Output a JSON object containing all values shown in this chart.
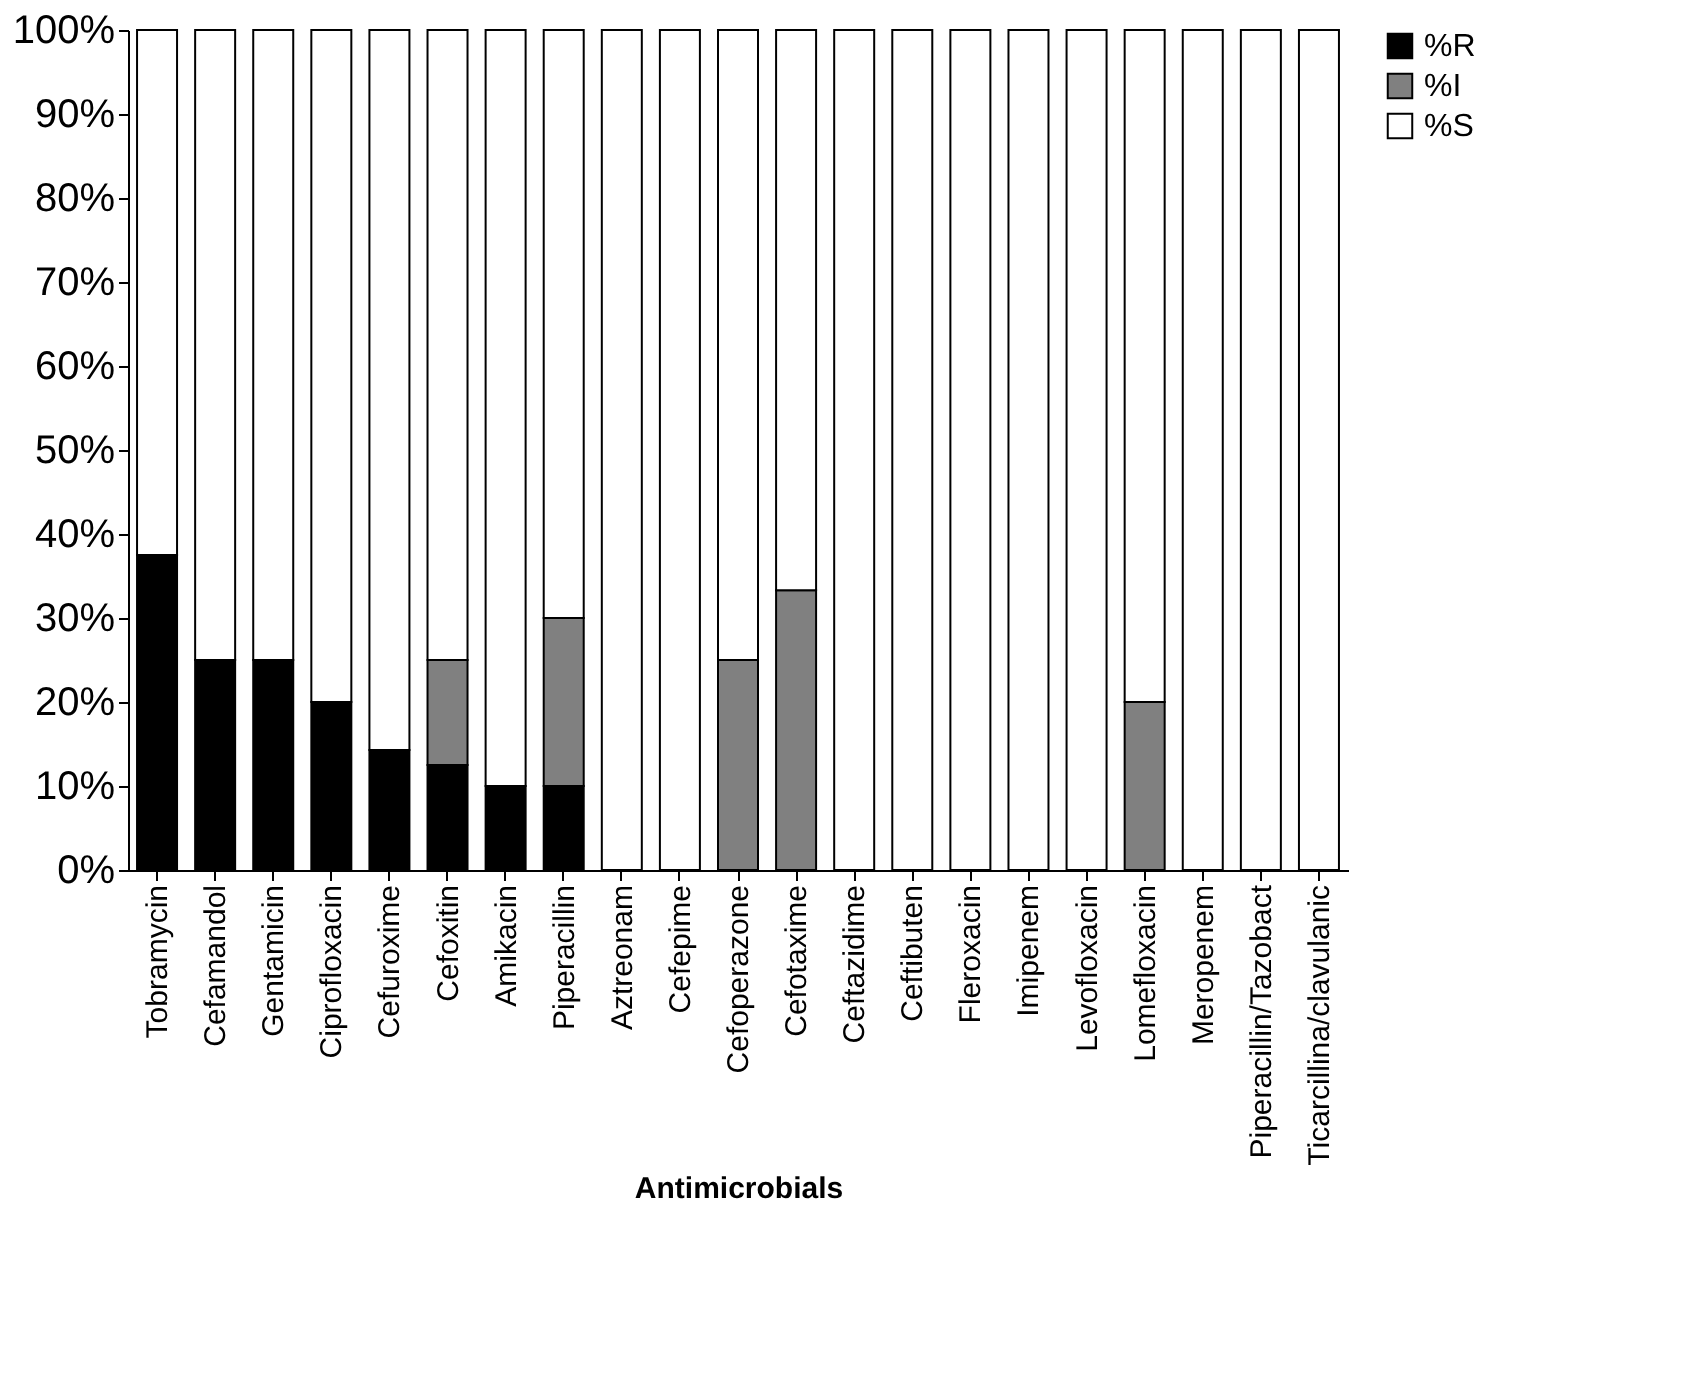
{
  "chart_data": {
    "type": "bar",
    "stacked": true,
    "xlabel": "Antimicrobials",
    "categories": [
      "Tobramycin",
      "Cefamandol",
      "Gentamicin",
      "Ciprofloxacin",
      "Cefuroxime",
      "Cefoxitin",
      "Amikacin",
      "Piperacillin",
      "Aztreonam",
      "Cefepime",
      "Cefoperazone",
      "Cefotaxime",
      "Ceftazidime",
      "Ceftibuten",
      "Fleroxacin",
      "Imipenem",
      "Levofloxacin",
      "Lomefloxacin",
      "Meropenem",
      "Piperacillin/Tazobact",
      "Ticarcillina/clavulanic"
    ],
    "series": [
      {
        "name": "%R",
        "color": "#000000",
        "values": [
          37.5,
          25,
          25,
          20,
          14.3,
          12.5,
          10,
          10,
          0,
          0,
          0,
          0,
          0,
          0,
          0,
          0,
          0,
          0,
          0,
          0,
          0
        ]
      },
      {
        "name": "%I",
        "color": "#808080",
        "values": [
          0,
          0,
          0,
          0,
          0,
          12.5,
          0,
          20,
          0,
          0,
          25,
          33.3,
          0,
          0,
          0,
          0,
          0,
          20,
          0,
          0,
          0
        ]
      },
      {
        "name": "%S",
        "color": "#ffffff",
        "values": [
          62.5,
          75,
          75,
          80,
          85.7,
          75,
          90,
          70,
          100,
          100,
          75,
          66.7,
          100,
          100,
          100,
          100,
          100,
          80,
          100,
          100,
          100
        ]
      }
    ],
    "ylim": [
      0,
      100
    ],
    "yticks": [
      {
        "value": 0,
        "label": "0%"
      },
      {
        "value": 10,
        "label": "10%"
      },
      {
        "value": 20,
        "label": "20%"
      },
      {
        "value": 30,
        "label": "30%"
      },
      {
        "value": 40,
        "label": "40%"
      },
      {
        "value": 50,
        "label": "50%"
      },
      {
        "value": 60,
        "label": "60%"
      },
      {
        "value": 70,
        "label": "70%"
      },
      {
        "value": 80,
        "label": "80%"
      },
      {
        "value": 90,
        "label": "90%"
      },
      {
        "value": 100,
        "label": "100%"
      }
    ],
    "grid": false,
    "legend": "right"
  }
}
